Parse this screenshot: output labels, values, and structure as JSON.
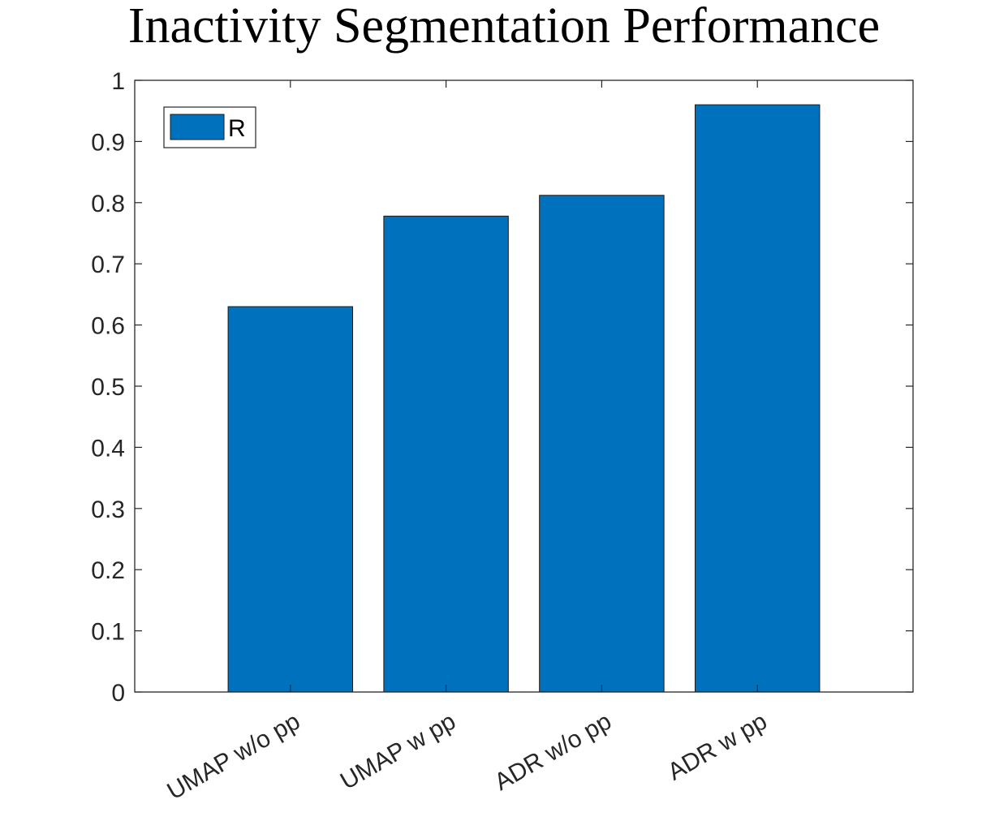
{
  "chart_data": {
    "type": "bar",
    "title": "Inactivity Segmentation Performance",
    "xlabel": "",
    "ylabel": "",
    "categories": [
      "UMAP w/o pp",
      "UMAP w pp",
      "ADR w/o pp",
      "ADR w pp"
    ],
    "series": [
      {
        "name": "R",
        "values": [
          0.63,
          0.778,
          0.812,
          0.96
        ],
        "color": "#0072BD"
      }
    ],
    "ylim": [
      0,
      1
    ],
    "yticks": [
      0,
      0.1,
      0.2,
      0.3,
      0.4,
      0.5,
      0.6,
      0.7,
      0.8,
      0.9,
      1
    ],
    "ytick_labels": [
      "0",
      "0.1",
      "0.2",
      "0.3",
      "0.4",
      "0.5",
      "0.6",
      "0.7",
      "0.8",
      "0.9",
      "1"
    ],
    "grid": false,
    "legend": "top-left",
    "xtick_rotation_deg": 30
  }
}
